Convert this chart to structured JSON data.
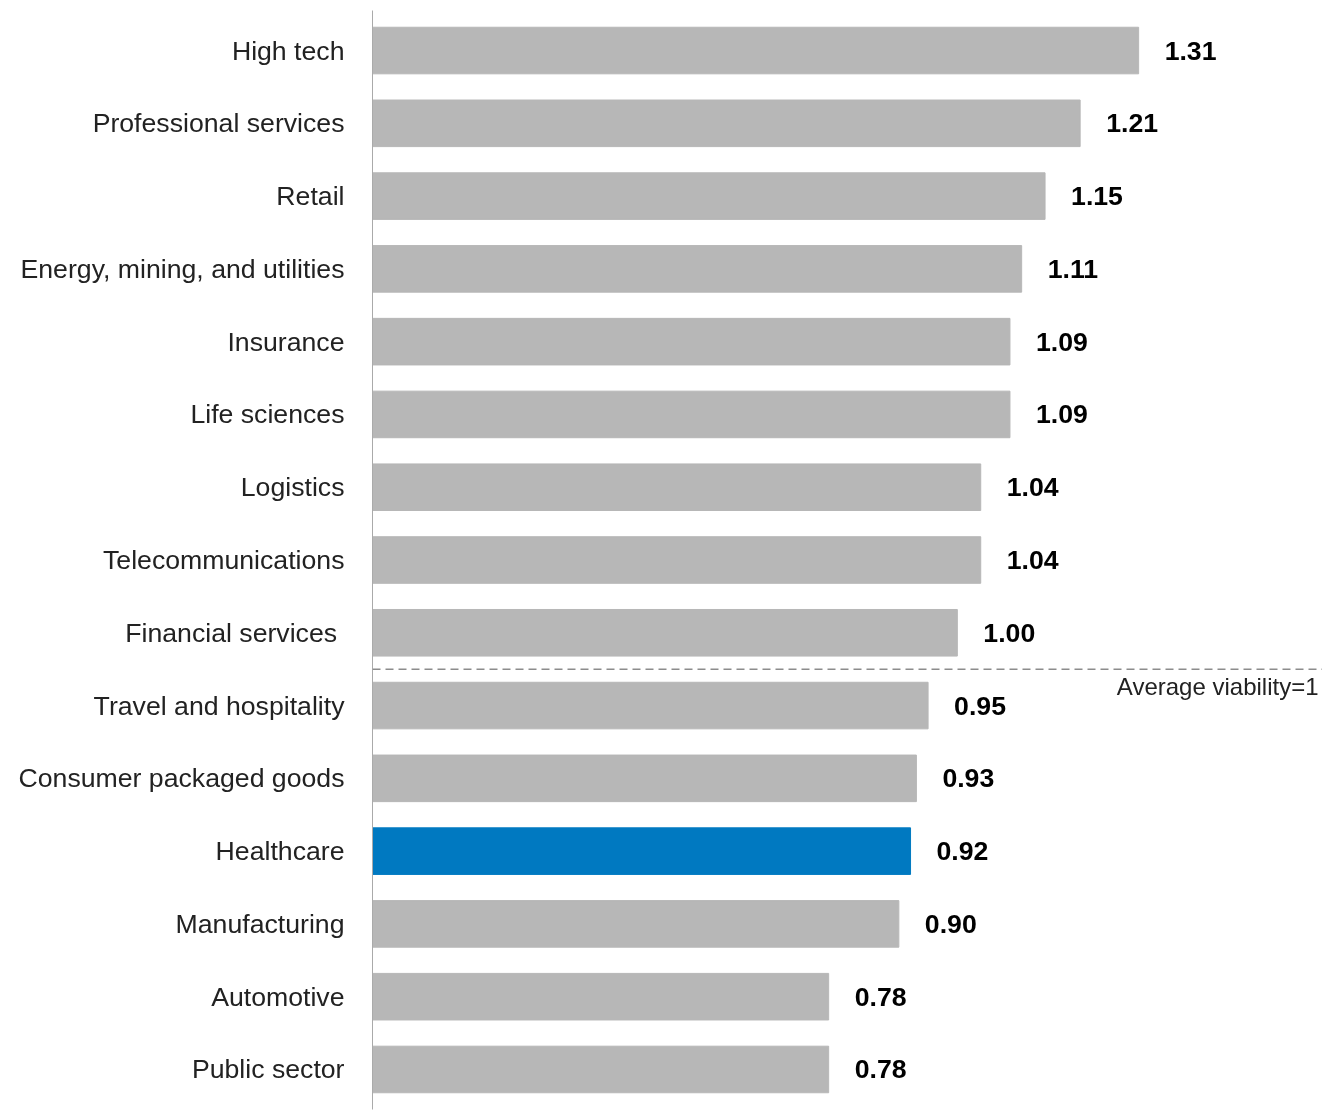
{
  "chart_data": {
    "type": "bar",
    "orientation": "horizontal",
    "categories": [
      "High tech",
      "Professional services",
      "Retail",
      "Energy, mining, and utilities",
      "Insurance",
      "Life sciences",
      "Logistics",
      "Telecommunications",
      "Financial  services",
      "Travel and hospitality",
      "Consumer packaged goods",
      "Healthcare",
      "Manufacturing",
      "Automotive",
      "Public sector"
    ],
    "values": [
      1.31,
      1.21,
      1.15,
      1.11,
      1.09,
      1.09,
      1.04,
      1.04,
      1.0,
      0.95,
      0.93,
      0.92,
      0.9,
      0.78,
      0.78
    ],
    "value_labels": [
      "1.31",
      "1.21",
      "1.15",
      "1.11",
      "1.09",
      "1.09",
      "1.04",
      "1.04",
      "1.00",
      "0.95",
      "0.93",
      "0.92",
      "0.90",
      "0.78",
      "0.78"
    ],
    "colors": [
      "#b7b7b7",
      "#b7b7b7",
      "#b7b7b7",
      "#b7b7b7",
      "#b7b7b7",
      "#b7b7b7",
      "#b7b7b7",
      "#b7b7b7",
      "#b7b7b7",
      "#b7b7b7",
      "#b7b7b7",
      "#0079c1",
      "#b7b7b7",
      "#b7b7b7",
      "#b7b7b7"
    ],
    "tick_labels": "y",
    "annotations": [
      "Average viability=1"
    ]
  }
}
